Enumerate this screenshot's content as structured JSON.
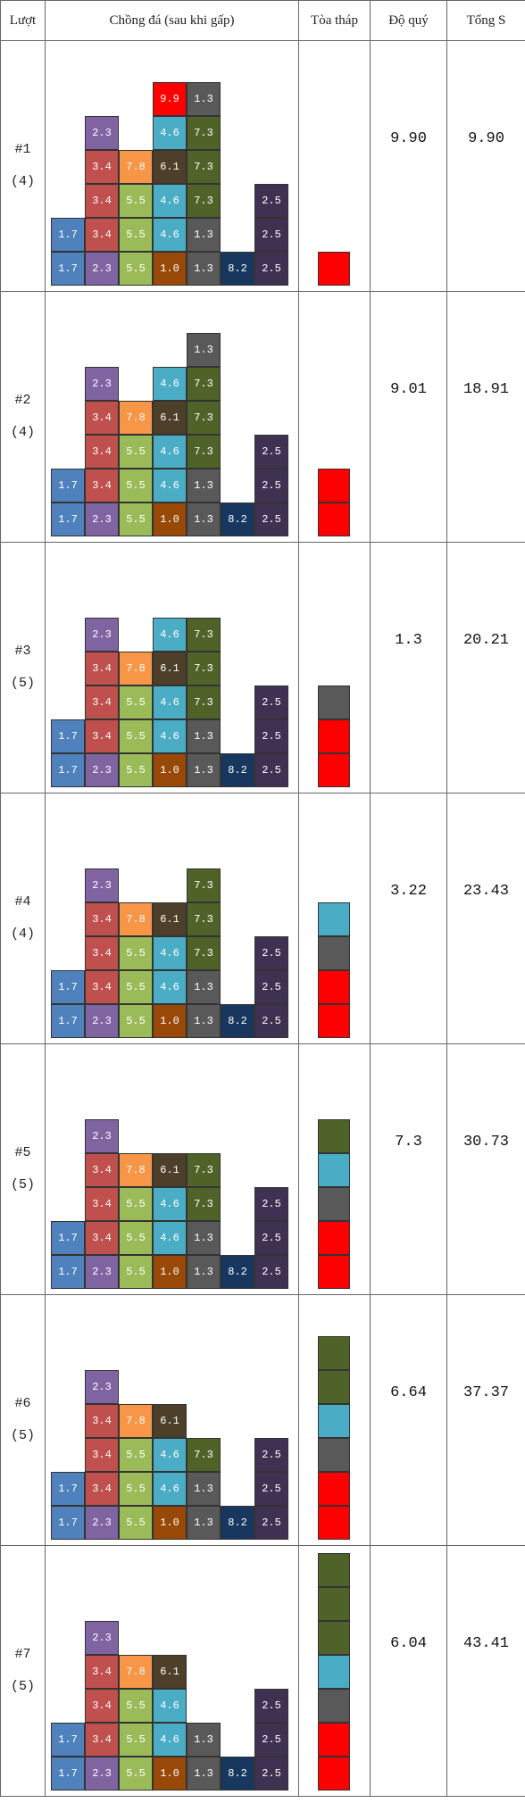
{
  "headers": {
    "turn": "Lượt",
    "stack": "Chồng đá (sau khi gấp)",
    "tower": "Tòa tháp",
    "value": "Độ quý",
    "total": "Tổng S"
  },
  "colors": {
    "blue": "#4f81bd",
    "purple": "#8064a2",
    "red_brown": "#c0504d",
    "green": "#9bbb59",
    "orange": "#f79646",
    "brown": "#984807",
    "teal": "#4bacc6",
    "gray": "#595959",
    "olive": "#4f6228",
    "dark_olive": "#4d3f2a",
    "navy": "#17375e",
    "dark_purple": "#3f3151",
    "bright_red": "#ff0000"
  },
  "rows": [
    {
      "turn": "#1",
      "count": "(4)",
      "value": "9.90",
      "total": "9.90",
      "columns": [
        [
          {
            "v": "1.7",
            "c": "blue"
          },
          {
            "v": "1.7",
            "c": "blue"
          }
        ],
        [
          {
            "v": "2.3",
            "c": "purple"
          },
          {
            "v": "3.4",
            "c": "red_brown"
          },
          {
            "v": "3.4",
            "c": "red_brown"
          },
          {
            "v": "3.4",
            "c": "red_brown"
          },
          {
            "v": "2.3",
            "c": "purple"
          }
        ],
        [
          {
            "v": "5.5",
            "c": "green"
          },
          {
            "v": "5.5",
            "c": "green"
          },
          {
            "v": "5.5",
            "c": "green"
          },
          {
            "v": "7.8",
            "c": "orange"
          }
        ],
        [
          {
            "v": "1.0",
            "c": "brown"
          },
          {
            "v": "4.6",
            "c": "teal"
          },
          {
            "v": "4.6",
            "c": "teal"
          },
          {
            "v": "6.1",
            "c": "dark_olive"
          },
          {
            "v": "4.6",
            "c": "teal"
          },
          {
            "v": "9.9",
            "c": "bright_red"
          }
        ],
        [
          {
            "v": "1.3",
            "c": "gray"
          },
          {
            "v": "1.3",
            "c": "gray"
          },
          {
            "v": "7.3",
            "c": "olive"
          },
          {
            "v": "7.3",
            "c": "olive"
          },
          {
            "v": "7.3",
            "c": "olive"
          },
          {
            "v": "1.3",
            "c": "gray"
          }
        ],
        [
          {
            "v": "8.2",
            "c": "navy"
          }
        ],
        [
          {
            "v": "2.5",
            "c": "dark_purple"
          },
          {
            "v": "2.5",
            "c": "dark_purple"
          },
          {
            "v": "2.5",
            "c": "dark_purple"
          }
        ]
      ],
      "tower": [
        "bright_red"
      ]
    },
    {
      "turn": "#2",
      "count": "(4)",
      "value": "9.01",
      "total": "18.91",
      "columns": [
        [
          {
            "v": "1.7",
            "c": "blue"
          },
          {
            "v": "1.7",
            "c": "blue"
          }
        ],
        [
          {
            "v": "2.3",
            "c": "purple"
          },
          {
            "v": "3.4",
            "c": "red_brown"
          },
          {
            "v": "3.4",
            "c": "red_brown"
          },
          {
            "v": "3.4",
            "c": "red_brown"
          },
          {
            "v": "2.3",
            "c": "purple"
          }
        ],
        [
          {
            "v": "5.5",
            "c": "green"
          },
          {
            "v": "5.5",
            "c": "green"
          },
          {
            "v": "5.5",
            "c": "green"
          },
          {
            "v": "7.8",
            "c": "orange"
          }
        ],
        [
          {
            "v": "1.0",
            "c": "brown"
          },
          {
            "v": "4.6",
            "c": "teal"
          },
          {
            "v": "4.6",
            "c": "teal"
          },
          {
            "v": "6.1",
            "c": "dark_olive"
          },
          {
            "v": "4.6",
            "c": "teal"
          }
        ],
        [
          {
            "v": "1.3",
            "c": "gray"
          },
          {
            "v": "1.3",
            "c": "gray"
          },
          {
            "v": "7.3",
            "c": "olive"
          },
          {
            "v": "7.3",
            "c": "olive"
          },
          {
            "v": "7.3",
            "c": "olive"
          },
          {
            "v": "1.3",
            "c": "gray"
          }
        ],
        [
          {
            "v": "8.2",
            "c": "navy"
          }
        ],
        [
          {
            "v": "2.5",
            "c": "dark_purple"
          },
          {
            "v": "2.5",
            "c": "dark_purple"
          },
          {
            "v": "2.5",
            "c": "dark_purple"
          }
        ]
      ],
      "tower": [
        "bright_red",
        "bright_red"
      ]
    },
    {
      "turn": "#3",
      "count": "(5)",
      "value": "1.3",
      "total": "20.21",
      "columns": [
        [
          {
            "v": "1.7",
            "c": "blue"
          },
          {
            "v": "1.7",
            "c": "blue"
          }
        ],
        [
          {
            "v": "2.3",
            "c": "purple"
          },
          {
            "v": "3.4",
            "c": "red_brown"
          },
          {
            "v": "3.4",
            "c": "red_brown"
          },
          {
            "v": "3.4",
            "c": "red_brown"
          },
          {
            "v": "2.3",
            "c": "purple"
          }
        ],
        [
          {
            "v": "5.5",
            "c": "green"
          },
          {
            "v": "5.5",
            "c": "green"
          },
          {
            "v": "5.5",
            "c": "green"
          },
          {
            "v": "7.8",
            "c": "orange"
          }
        ],
        [
          {
            "v": "1.0",
            "c": "brown"
          },
          {
            "v": "4.6",
            "c": "teal"
          },
          {
            "v": "4.6",
            "c": "teal"
          },
          {
            "v": "6.1",
            "c": "dark_olive"
          },
          {
            "v": "4.6",
            "c": "teal"
          }
        ],
        [
          {
            "v": "1.3",
            "c": "gray"
          },
          {
            "v": "1.3",
            "c": "gray"
          },
          {
            "v": "7.3",
            "c": "olive"
          },
          {
            "v": "7.3",
            "c": "olive"
          },
          {
            "v": "7.3",
            "c": "olive"
          }
        ],
        [
          {
            "v": "8.2",
            "c": "navy"
          }
        ],
        [
          {
            "v": "2.5",
            "c": "dark_purple"
          },
          {
            "v": "2.5",
            "c": "dark_purple"
          },
          {
            "v": "2.5",
            "c": "dark_purple"
          }
        ]
      ],
      "tower": [
        "bright_red",
        "bright_red",
        "gray"
      ]
    },
    {
      "turn": "#4",
      "count": "(4)",
      "value": "3.22",
      "total": "23.43",
      "columns": [
        [
          {
            "v": "1.7",
            "c": "blue"
          },
          {
            "v": "1.7",
            "c": "blue"
          }
        ],
        [
          {
            "v": "2.3",
            "c": "purple"
          },
          {
            "v": "3.4",
            "c": "red_brown"
          },
          {
            "v": "3.4",
            "c": "red_brown"
          },
          {
            "v": "3.4",
            "c": "red_brown"
          },
          {
            "v": "2.3",
            "c": "purple"
          }
        ],
        [
          {
            "v": "5.5",
            "c": "green"
          },
          {
            "v": "5.5",
            "c": "green"
          },
          {
            "v": "5.5",
            "c": "green"
          },
          {
            "v": "7.8",
            "c": "orange"
          }
        ],
        [
          {
            "v": "1.0",
            "c": "brown"
          },
          {
            "v": "4.6",
            "c": "teal"
          },
          {
            "v": "4.6",
            "c": "teal"
          },
          {
            "v": "6.1",
            "c": "dark_olive"
          }
        ],
        [
          {
            "v": "1.3",
            "c": "gray"
          },
          {
            "v": "1.3",
            "c": "gray"
          },
          {
            "v": "7.3",
            "c": "olive"
          },
          {
            "v": "7.3",
            "c": "olive"
          },
          {
            "v": "7.3",
            "c": "olive"
          }
        ],
        [
          {
            "v": "8.2",
            "c": "navy"
          }
        ],
        [
          {
            "v": "2.5",
            "c": "dark_purple"
          },
          {
            "v": "2.5",
            "c": "dark_purple"
          },
          {
            "v": "2.5",
            "c": "dark_purple"
          }
        ]
      ],
      "tower": [
        "bright_red",
        "bright_red",
        "gray",
        "teal"
      ]
    },
    {
      "turn": "#5",
      "count": "(5)",
      "value": "7.3",
      "total": "30.73",
      "columns": [
        [
          {
            "v": "1.7",
            "c": "blue"
          },
          {
            "v": "1.7",
            "c": "blue"
          }
        ],
        [
          {
            "v": "2.3",
            "c": "purple"
          },
          {
            "v": "3.4",
            "c": "red_brown"
          },
          {
            "v": "3.4",
            "c": "red_brown"
          },
          {
            "v": "3.4",
            "c": "red_brown"
          },
          {
            "v": "2.3",
            "c": "purple"
          }
        ],
        [
          {
            "v": "5.5",
            "c": "green"
          },
          {
            "v": "5.5",
            "c": "green"
          },
          {
            "v": "5.5",
            "c": "green"
          },
          {
            "v": "7.8",
            "c": "orange"
          }
        ],
        [
          {
            "v": "1.0",
            "c": "brown"
          },
          {
            "v": "4.6",
            "c": "teal"
          },
          {
            "v": "4.6",
            "c": "teal"
          },
          {
            "v": "6.1",
            "c": "dark_olive"
          }
        ],
        [
          {
            "v": "1.3",
            "c": "gray"
          },
          {
            "v": "1.3",
            "c": "gray"
          },
          {
            "v": "7.3",
            "c": "olive"
          },
          {
            "v": "7.3",
            "c": "olive"
          }
        ],
        [
          {
            "v": "8.2",
            "c": "navy"
          }
        ],
        [
          {
            "v": "2.5",
            "c": "dark_purple"
          },
          {
            "v": "2.5",
            "c": "dark_purple"
          },
          {
            "v": "2.5",
            "c": "dark_purple"
          }
        ]
      ],
      "tower": [
        "bright_red",
        "bright_red",
        "gray",
        "teal",
        "olive"
      ]
    },
    {
      "turn": "#6",
      "count": "(5)",
      "value": "6.64",
      "total": "37.37",
      "columns": [
        [
          {
            "v": "1.7",
            "c": "blue"
          },
          {
            "v": "1.7",
            "c": "blue"
          }
        ],
        [
          {
            "v": "2.3",
            "c": "purple"
          },
          {
            "v": "3.4",
            "c": "red_brown"
          },
          {
            "v": "3.4",
            "c": "red_brown"
          },
          {
            "v": "3.4",
            "c": "red_brown"
          },
          {
            "v": "2.3",
            "c": "purple"
          }
        ],
        [
          {
            "v": "5.5",
            "c": "green"
          },
          {
            "v": "5.5",
            "c": "green"
          },
          {
            "v": "5.5",
            "c": "green"
          },
          {
            "v": "7.8",
            "c": "orange"
          }
        ],
        [
          {
            "v": "1.0",
            "c": "brown"
          },
          {
            "v": "4.6",
            "c": "teal"
          },
          {
            "v": "4.6",
            "c": "teal"
          },
          {
            "v": "6.1",
            "c": "dark_olive"
          }
        ],
        [
          {
            "v": "1.3",
            "c": "gray"
          },
          {
            "v": "1.3",
            "c": "gray"
          },
          {
            "v": "7.3",
            "c": "olive"
          }
        ],
        [
          {
            "v": "8.2",
            "c": "navy"
          }
        ],
        [
          {
            "v": "2.5",
            "c": "dark_purple"
          },
          {
            "v": "2.5",
            "c": "dark_purple"
          },
          {
            "v": "2.5",
            "c": "dark_purple"
          }
        ]
      ],
      "tower": [
        "bright_red",
        "bright_red",
        "gray",
        "teal",
        "olive",
        "olive"
      ]
    },
    {
      "turn": "#7",
      "count": "(5)",
      "value": "6.04",
      "total": "43.41",
      "columns": [
        [
          {
            "v": "1.7",
            "c": "blue"
          },
          {
            "v": "1.7",
            "c": "blue"
          }
        ],
        [
          {
            "v": "2.3",
            "c": "purple"
          },
          {
            "v": "3.4",
            "c": "red_brown"
          },
          {
            "v": "3.4",
            "c": "red_brown"
          },
          {
            "v": "3.4",
            "c": "red_brown"
          },
          {
            "v": "2.3",
            "c": "purple"
          }
        ],
        [
          {
            "v": "5.5",
            "c": "green"
          },
          {
            "v": "5.5",
            "c": "green"
          },
          {
            "v": "5.5",
            "c": "green"
          },
          {
            "v": "7.8",
            "c": "orange"
          }
        ],
        [
          {
            "v": "1.0",
            "c": "brown"
          },
          {
            "v": "4.6",
            "c": "teal"
          },
          {
            "v": "4.6",
            "c": "teal"
          },
          {
            "v": "6.1",
            "c": "dark_olive"
          }
        ],
        [
          {
            "v": "1.3",
            "c": "gray"
          },
          {
            "v": "1.3",
            "c": "gray"
          }
        ],
        [
          {
            "v": "8.2",
            "c": "navy"
          }
        ],
        [
          {
            "v": "2.5",
            "c": "dark_purple"
          },
          {
            "v": "2.5",
            "c": "dark_purple"
          },
          {
            "v": "2.5",
            "c": "dark_purple"
          }
        ]
      ],
      "tower": [
        "bright_red",
        "bright_red",
        "gray",
        "teal",
        "olive",
        "olive",
        "olive"
      ]
    }
  ]
}
